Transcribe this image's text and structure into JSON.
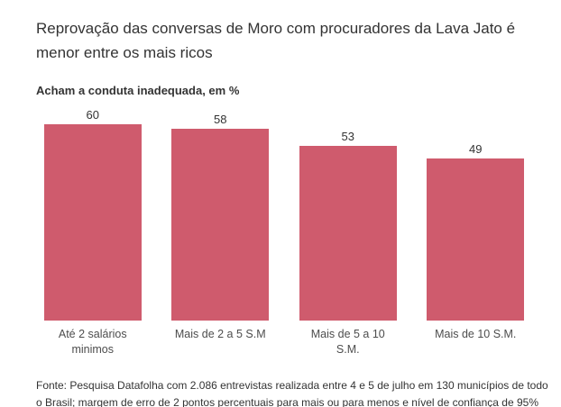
{
  "header": {
    "title": "Reprovação das conversas de Moro com procuradores da Lava Jato é menor entre os mais ricos",
    "subtitle": "Acham a conduta inadequada, em %"
  },
  "chart_data": {
    "type": "bar",
    "title": "Acham a conduta inadequada, em %",
    "categories": [
      "Até 2 salários minimos",
      "Mais de 2 a 5 S.M",
      "Mais de 5 a 10 S.M.",
      "Mais de 10 S.M."
    ],
    "categories_wrapped": [
      "Até 2 salários\nminimos",
      "Mais de 2 a 5 S.M",
      "Mais de 5 a 10\nS.M.",
      "Mais de 10 S.M."
    ],
    "values": [
      60,
      58,
      53,
      49
    ],
    "xlabel": "",
    "ylabel": "",
    "ylim": [
      0,
      60
    ],
    "grid": false,
    "legend": false,
    "value_labels": true,
    "bar_color": "#cf5b6d"
  },
  "footer": {
    "source": "Fonte: Pesquisa Datafolha com 2.086 entrevistas realizada entre 4 e 5 de julho em 130 municípios de todo o Brasil; margem de erro de 2 pontos percentuais para mais ou para menos e nível de confiança de 95%"
  },
  "colors": {
    "bar": "#cf5b6d",
    "title_text": "#333333",
    "category_text": "#4d4d4d",
    "background": "#ffffff"
  }
}
